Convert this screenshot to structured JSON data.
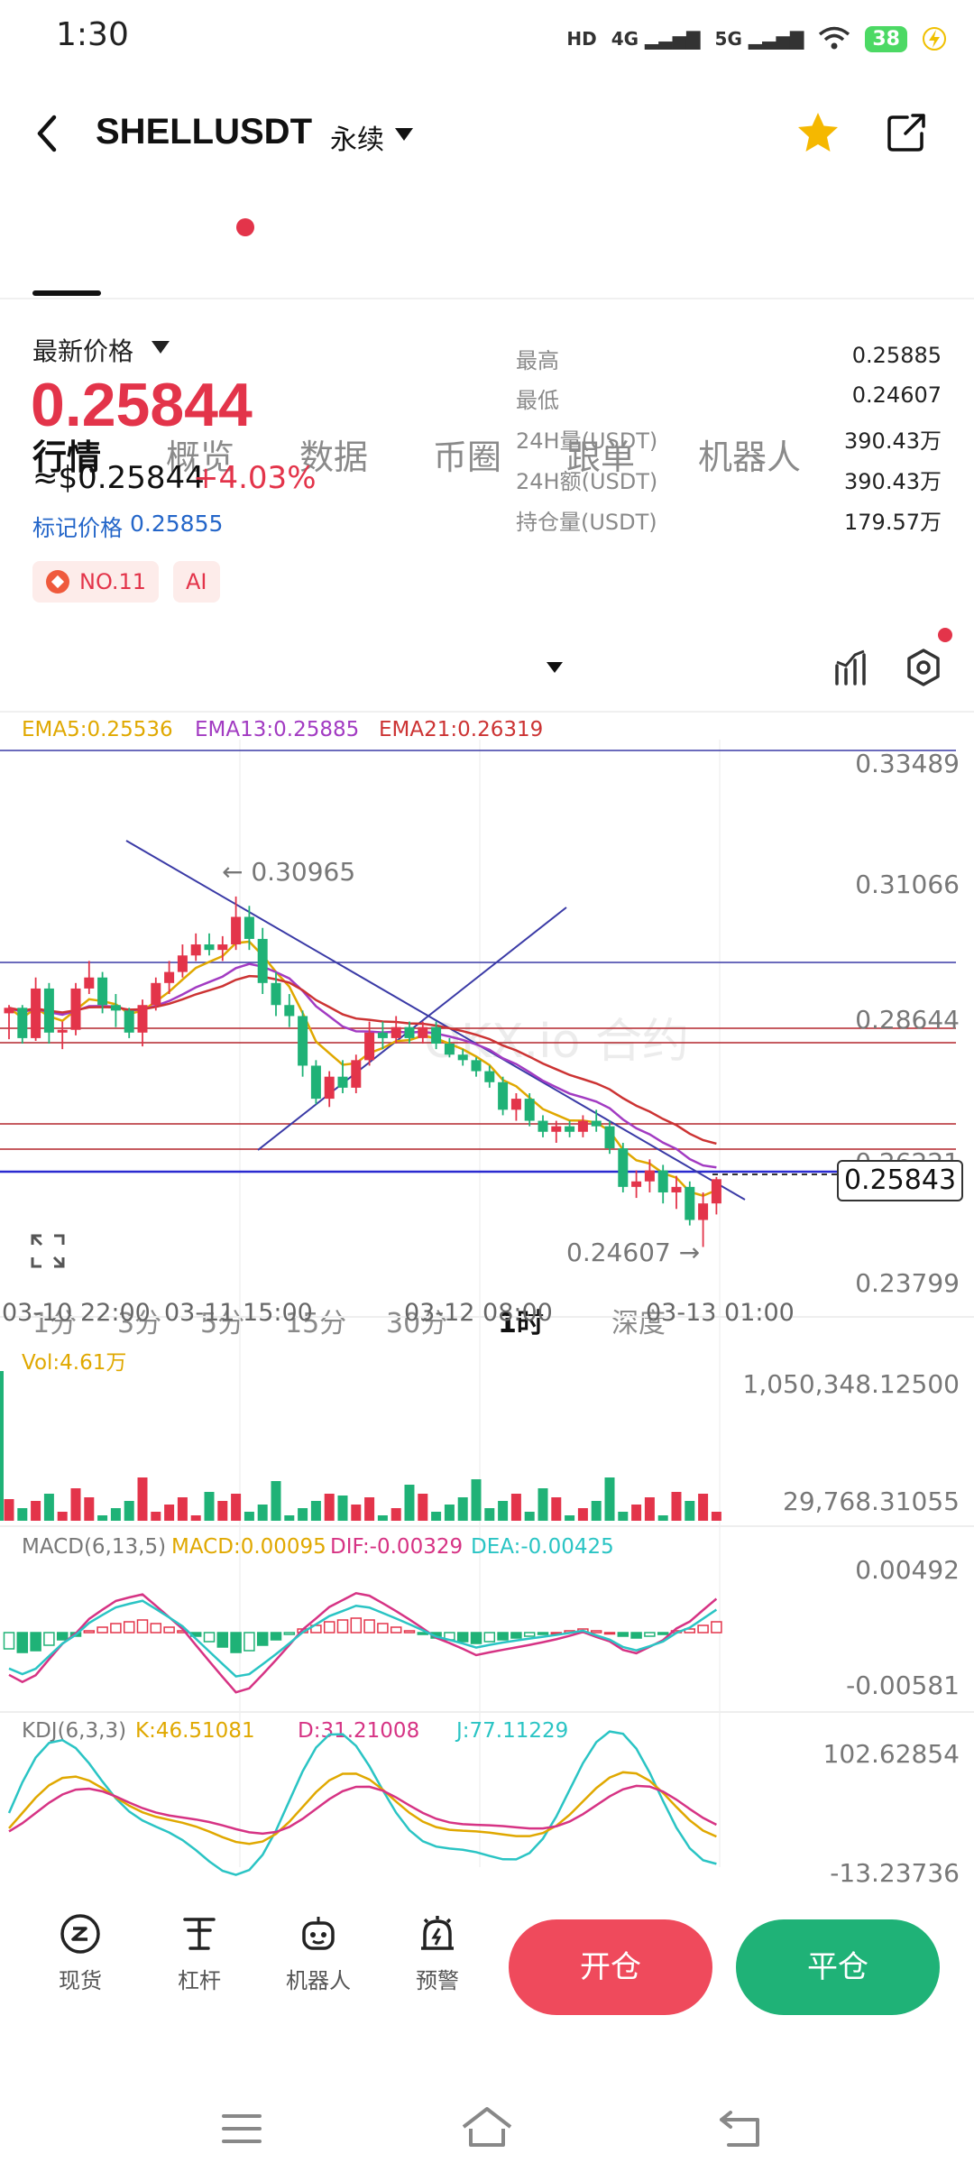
{
  "status_bar": {
    "time": "1:30",
    "hd": "HD",
    "net1": "4G",
    "net2": "5G",
    "battery": "38"
  },
  "header": {
    "title": "SHELLUSDT",
    "subtitle": "永续"
  },
  "tabs": [
    {
      "label": "行情",
      "active": true
    },
    {
      "label": "概览",
      "has_dot": true
    },
    {
      "label": "数据"
    },
    {
      "label": "币圈"
    },
    {
      "label": "跟单"
    },
    {
      "label": "机器人"
    }
  ],
  "price": {
    "latest_label": "最新价格",
    "value": "0.25844",
    "usd": "≈$0.25844",
    "change": "+4.03%",
    "mark_label": "标记价格",
    "mark_value": "0.25855"
  },
  "badges": {
    "rank": "NO.11",
    "ai": "AI"
  },
  "stats": [
    {
      "label": "最高",
      "value": "0.25885"
    },
    {
      "label": "最低",
      "value": "0.24607"
    },
    {
      "label": "24H量(USDT)",
      "value": "390.43万"
    },
    {
      "label": "24H额(USDT)",
      "value": "390.43万"
    },
    {
      "label": "持仓量(USDT)",
      "value": "179.57万"
    }
  ],
  "intervals": [
    {
      "label": "1分"
    },
    {
      "label": "3分"
    },
    {
      "label": "5分"
    },
    {
      "label": "15分"
    },
    {
      "label": "30分"
    },
    {
      "label": "1时",
      "active": true
    },
    {
      "label": "深度"
    }
  ],
  "ema": {
    "ema5": "EMA5:0.25536",
    "ema13": "EMA13:0.25885",
    "ema21": "EMA21:0.26319"
  },
  "price_axis": [
    "0.33489",
    "0.31066",
    "0.28644",
    "0.26221",
    "0.23799"
  ],
  "annotations": {
    "high": "← 0.30965",
    "low": "0.24607 →",
    "current": "0.25843",
    "watermark": "OKX.io 合约"
  },
  "time_axis": [
    "03-10 22:00",
    "03-11 15:00",
    "03-12 08:00",
    "03-13 01:00"
  ],
  "volume": {
    "label": "Vol:4.61万",
    "max": "1,050,348.12500",
    "min": "29,768.31055"
  },
  "macd": {
    "label": "MACD(6,13,5)",
    "macd": "MACD:0.00095",
    "dif": "DIF:-0.00329",
    "dea": "DEA:-0.00425",
    "max": "0.00492",
    "min": "-0.00581"
  },
  "kdj": {
    "label": "KDJ(6,3,3)",
    "k": "K:46.51081",
    "d": "D:31.21008",
    "j": "J:77.11229",
    "max": "102.62854",
    "min": "-13.23736"
  },
  "bottom_nav": [
    {
      "label": "现货",
      "icon": "spot-icon"
    },
    {
      "label": "杠杆",
      "icon": "leverage-icon"
    },
    {
      "label": "机器人",
      "icon": "robot-icon"
    },
    {
      "label": "预警",
      "icon": "alert-icon"
    }
  ],
  "actions": {
    "open": "开仓",
    "close": "平仓"
  },
  "colors": {
    "up": "#e3344a",
    "down": "#1fb277",
    "ema5": "#e0a800",
    "ema13": "#a23bc2",
    "ema21": "#cc3333",
    "accent": "#2466c9"
  },
  "chart_data": {
    "type": "candlestick",
    "interval": "1时",
    "x": [
      "03-10 22:00",
      "03-11 15:00",
      "03-12 08:00",
      "03-13 01:00"
    ],
    "ylim": [
      0.23799,
      0.33489
    ],
    "high": 0.30965,
    "low": 0.24607,
    "last": 0.25843,
    "candles": [
      [
        0.2885,
        0.29,
        0.2838,
        0.2895
      ],
      [
        0.2895,
        0.29,
        0.283,
        0.284
      ],
      [
        0.284,
        0.295,
        0.2835,
        0.293
      ],
      [
        0.293,
        0.294,
        0.283,
        0.285
      ],
      [
        0.285,
        0.287,
        0.282,
        0.2855
      ],
      [
        0.2855,
        0.294,
        0.2845,
        0.293
      ],
      [
        0.293,
        0.298,
        0.292,
        0.295
      ],
      [
        0.295,
        0.296,
        0.2885,
        0.29
      ],
      [
        0.29,
        0.292,
        0.286,
        0.289
      ],
      [
        0.289,
        0.2895,
        0.284,
        0.285
      ],
      [
        0.285,
        0.291,
        0.2825,
        0.29
      ],
      [
        0.29,
        0.295,
        0.289,
        0.294
      ],
      [
        0.294,
        0.298,
        0.292,
        0.296
      ],
      [
        0.296,
        0.301,
        0.295,
        0.299
      ],
      [
        0.299,
        0.303,
        0.298,
        0.301
      ],
      [
        0.301,
        0.303,
        0.299,
        0.3
      ],
      [
        0.3,
        0.3025,
        0.298,
        0.301
      ],
      [
        0.301,
        0.3097,
        0.3,
        0.306
      ],
      [
        0.306,
        0.308,
        0.3,
        0.302
      ],
      [
        0.302,
        0.304,
        0.292,
        0.294
      ],
      [
        0.294,
        0.296,
        0.288,
        0.29
      ],
      [
        0.29,
        0.292,
        0.286,
        0.288
      ],
      [
        0.288,
        0.289,
        0.277,
        0.279
      ],
      [
        0.279,
        0.28,
        0.272,
        0.273
      ],
      [
        0.273,
        0.278,
        0.2715,
        0.277
      ],
      [
        0.277,
        0.28,
        0.274,
        0.275
      ],
      [
        0.275,
        0.281,
        0.274,
        0.28
      ],
      [
        0.28,
        0.287,
        0.279,
        0.285
      ],
      [
        0.285,
        0.287,
        0.282,
        0.284
      ],
      [
        0.284,
        0.288,
        0.283,
        0.286
      ],
      [
        0.286,
        0.287,
        0.283,
        0.284
      ],
      [
        0.284,
        0.287,
        0.283,
        0.286
      ],
      [
        0.286,
        0.287,
        0.282,
        0.283
      ],
      [
        0.283,
        0.284,
        0.2805,
        0.281
      ],
      [
        0.281,
        0.282,
        0.279,
        0.28
      ],
      [
        0.28,
        0.2805,
        0.277,
        0.278
      ],
      [
        0.278,
        0.279,
        0.275,
        0.276
      ],
      [
        0.276,
        0.277,
        0.27,
        0.271
      ],
      [
        0.271,
        0.274,
        0.269,
        0.273
      ],
      [
        0.273,
        0.274,
        0.268,
        0.269
      ],
      [
        0.269,
        0.27,
        0.266,
        0.267
      ],
      [
        0.267,
        0.269,
        0.265,
        0.268
      ],
      [
        0.268,
        0.269,
        0.266,
        0.267
      ],
      [
        0.267,
        0.27,
        0.266,
        0.269
      ],
      [
        0.269,
        0.271,
        0.267,
        0.268
      ],
      [
        0.268,
        0.269,
        0.263,
        0.264
      ],
      [
        0.264,
        0.265,
        0.256,
        0.257
      ],
      [
        0.257,
        0.26,
        0.255,
        0.258
      ],
      [
        0.258,
        0.262,
        0.256,
        0.26
      ],
      [
        0.26,
        0.261,
        0.254,
        0.256
      ],
      [
        0.256,
        0.259,
        0.253,
        0.257
      ],
      [
        0.257,
        0.258,
        0.25,
        0.251
      ],
      [
        0.251,
        0.256,
        0.2461,
        0.254
      ],
      [
        0.254,
        0.2588,
        0.252,
        0.2584
      ]
    ],
    "ema5_last": 0.25536,
    "ema13_last": 0.25885,
    "ema21_last": 0.26319
  }
}
